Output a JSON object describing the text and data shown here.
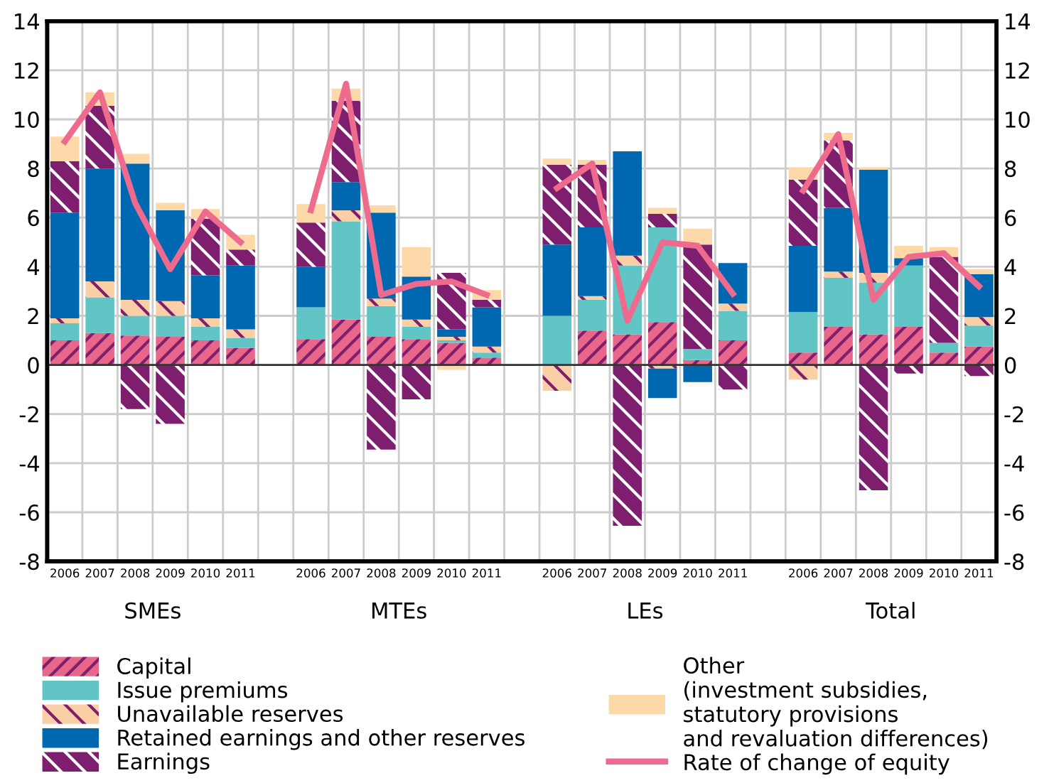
{
  "chart_data": {
    "type": "bar",
    "stacked": true,
    "categories": [
      "2006",
      "2007",
      "2008",
      "2009",
      "2010",
      "2011",
      null,
      "2006",
      "2007",
      "2008",
      "2009",
      "2010",
      "2011",
      null,
      "2006",
      "2007",
      "2008",
      "2009",
      "2010",
      "2011",
      null,
      "2006",
      "2007",
      "2008",
      "2009",
      "2010",
      "2011"
    ],
    "series": [
      {
        "name": "Capital",
        "color": "#e8668a",
        "values": [
          1.0,
          1.3,
          1.2,
          1.15,
          1.0,
          0.7,
          null,
          1.05,
          1.85,
          1.15,
          1.05,
          0.9,
          0.3,
          null,
          0,
          1.4,
          1.25,
          1.75,
          0.2,
          1.0,
          null,
          0.5,
          1.55,
          1.25,
          1.55,
          0.5,
          0.75
        ]
      },
      {
        "name": "Issue premiums",
        "color": "#62c5c5",
        "values": [
          0.7,
          1.45,
          0.8,
          0.85,
          0.55,
          0.4,
          null,
          1.3,
          4.0,
          1.25,
          0.5,
          0.1,
          0.2,
          null,
          2.0,
          1.25,
          2.8,
          3.85,
          0.45,
          1.2,
          null,
          1.65,
          2.0,
          2.1,
          2.5,
          0.4,
          0.85
        ]
      },
      {
        "name": "Unavailable reserves",
        "color": "#fbcfa6",
        "values": [
          0.2,
          0.65,
          0.65,
          0.6,
          0.35,
          0.35,
          null,
          0,
          0.45,
          0.3,
          0.3,
          0.15,
          0.25,
          null,
          -1.05,
          0.15,
          0.4,
          -0.15,
          0,
          0.3,
          null,
          -0.6,
          0.25,
          0.4,
          0,
          0,
          0.35
        ]
      },
      {
        "name": "Retained earnings and other reserves",
        "color": "#0068b0",
        "values": [
          4.3,
          4.6,
          5.55,
          3.7,
          1.75,
          2.6,
          null,
          1.65,
          1.15,
          3.5,
          1.75,
          0.3,
          1.6,
          null,
          2.9,
          2.8,
          4.25,
          -1.2,
          -0.7,
          1.65,
          null,
          2.7,
          2.6,
          4.2,
          0.3,
          0,
          1.75
        ]
      },
      {
        "name": "Earnings",
        "color": "#7e1e6e",
        "values": [
          2.1,
          2.55,
          -1.8,
          -2.4,
          2.3,
          0.65,
          null,
          1.8,
          3.3,
          -3.45,
          -1.4,
          2.3,
          0.3,
          null,
          3.25,
          2.55,
          -6.55,
          0.55,
          4.25,
          -1.0,
          null,
          2.7,
          2.75,
          -5.1,
          -0.35,
          3.5,
          -0.45
        ]
      },
      {
        "name": "Other\n(investment subsidies,\nstatutory provisions\nand revaluation differences)",
        "color": "#fdd8a8",
        "values": [
          1.0,
          0.55,
          0.4,
          0.3,
          0.4,
          0.6,
          null,
          0.75,
          0.5,
          0.3,
          1.2,
          -0.2,
          0.4,
          null,
          0.25,
          0.2,
          0,
          0.25,
          0.65,
          0,
          null,
          0.5,
          0.3,
          0.1,
          0.5,
          0.4,
          0.2
        ]
      },
      {
        "name": "Rate of change of equity",
        "type": "line",
        "color": "#ee6b8d",
        "values": [
          9.1,
          11.1,
          6.6,
          3.9,
          6.25,
          5.0,
          null,
          6.3,
          11.45,
          2.85,
          3.3,
          3.4,
          2.85,
          null,
          7.2,
          8.2,
          1.8,
          5.0,
          4.85,
          2.9,
          null,
          7.1,
          9.4,
          2.65,
          4.4,
          4.55,
          3.2
        ]
      }
    ],
    "ylim": [
      -8,
      14
    ],
    "yticks": [
      -8,
      -6,
      -4,
      -2,
      0,
      2,
      4,
      6,
      8,
      10,
      12,
      14
    ],
    "y2lim": [
      -8,
      14
    ],
    "y2ticks": [
      -8,
      -6,
      -4,
      -2,
      0,
      2,
      4,
      6,
      8,
      10,
      12,
      14
    ],
    "grid": true,
    "legend": "bottom",
    "annotations": [
      "SMEs",
      "MTEs",
      "LEs",
      "Total"
    ]
  }
}
